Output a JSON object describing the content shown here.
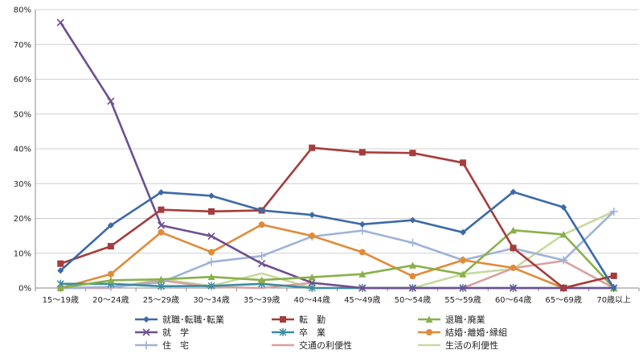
{
  "chart_data": {
    "type": "line",
    "title": "",
    "xlabel": "",
    "ylabel": "",
    "ylim": [
      0,
      80
    ],
    "y_ticks": [
      "0%",
      "10%",
      "20%",
      "30%",
      "40%",
      "50%",
      "60%",
      "70%",
      "80%"
    ],
    "grid": true,
    "legend_position": "bottom",
    "categories": [
      "15～19歳",
      "20～24歳",
      "25～29歳",
      "30～34歳",
      "35～39歳",
      "40～44歳",
      "45～49歳",
      "50～54歳",
      "55～59歳",
      "60～64歳",
      "65～69歳",
      "70歳以上"
    ],
    "series": [
      {
        "name": "就職･転職･転業",
        "color": "#3c6aa6",
        "marker": "diamond",
        "values": [
          5,
          18,
          27.5,
          26.5,
          22.3,
          21,
          18.3,
          19.5,
          16,
          27.6,
          23.2,
          0
        ]
      },
      {
        "name": "転　勤",
        "color": "#a63c3c",
        "marker": "square",
        "values": [
          7,
          12,
          22.5,
          22,
          22.3,
          40.3,
          39,
          38.8,
          36,
          11.5,
          0,
          3.5
        ]
      },
      {
        "name": "退職･廃業",
        "color": "#8ab04a",
        "marker": "triangle",
        "values": [
          0,
          2.2,
          2.5,
          3.2,
          2.3,
          3.1,
          4,
          6.5,
          4,
          16.6,
          15.4,
          0
        ]
      },
      {
        "name": "就　学",
        "color": "#6e4f91",
        "marker": "x",
        "values": [
          76.3,
          53.7,
          18,
          14.9,
          7,
          1.5,
          0,
          0,
          0,
          0,
          0,
          0
        ]
      },
      {
        "name": "卒　業",
        "color": "#3b8ca0",
        "marker": "star",
        "values": [
          1.2,
          1.2,
          0.5,
          0.6,
          1.2,
          0,
          0,
          0,
          0,
          0,
          0,
          0
        ]
      },
      {
        "name": "結婚･離婚･縁組",
        "color": "#e08b3a",
        "marker": "circle",
        "values": [
          0,
          4,
          16,
          10.3,
          18.2,
          15,
          10.3,
          3.4,
          8,
          5.8,
          0,
          3.5
        ]
      },
      {
        "name": "住　宅",
        "color": "#9fb3d8",
        "marker": "plus",
        "values": [
          0,
          0.3,
          1.6,
          7.5,
          9.2,
          14.8,
          16.5,
          13,
          8,
          11.4,
          8,
          22
        ]
      },
      {
        "name": "交通の利便性",
        "color": "#d9a0a0",
        "marker": "none",
        "values": [
          0,
          0,
          2.2,
          0.3,
          0,
          1.5,
          0,
          0,
          0,
          5.7,
          7.8,
          0
        ]
      },
      {
        "name": "生活の利便性",
        "color": "#c6d9a0",
        "marker": "none",
        "values": [
          0,
          0,
          2.5,
          0.6,
          4.2,
          0,
          0,
          0,
          4,
          5.5,
          15.4,
          22
        ]
      }
    ]
  }
}
